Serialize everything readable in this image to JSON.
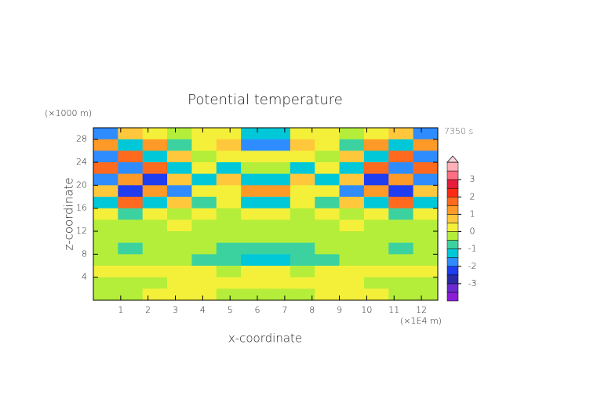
{
  "chart_data": {
    "type": "contourf",
    "title": "Potential temperature",
    "xlabel": "x-coordinate",
    "ylabel": "z-coordinate",
    "x_unit": "(×1E4 m)",
    "y_unit": "(×1000 m)",
    "time_label": "7350 s",
    "xlim": [
      0,
      12.6
    ],
    "ylim": [
      0,
      30
    ],
    "xticks": [
      1,
      2,
      3,
      4,
      5,
      6,
      7,
      8,
      9,
      10,
      11,
      12
    ],
    "yticks": [
      4,
      8,
      12,
      16,
      20,
      24,
      28
    ],
    "x": [
      0.45,
      1.35,
      2.25,
      3.15,
      4.05,
      4.95,
      5.85,
      6.75,
      7.65,
      8.55,
      9.45,
      10.35,
      11.25,
      12.15
    ],
    "y": [
      29,
      27,
      25,
      23,
      21,
      19,
      17,
      15,
      13,
      11,
      9,
      7,
      5,
      3,
      1
    ],
    "z": [
      [
        -1.7,
        0.7,
        0.2,
        -0.2,
        0.2,
        0.2,
        -1.2,
        -1.2,
        0.2,
        0.2,
        -0.2,
        0.2,
        0.7,
        -1.7
      ],
      [
        1.2,
        -1.2,
        1.2,
        -0.7,
        0.2,
        0.7,
        -1.7,
        -1.7,
        0.7,
        0.2,
        -0.7,
        1.2,
        -1.2,
        1.2
      ],
      [
        -1.7,
        1.7,
        -1.2,
        0.7,
        -0.2,
        0.2,
        0.2,
        0.2,
        0.2,
        -0.2,
        0.7,
        -1.2,
        1.7,
        -1.7
      ],
      [
        1.7,
        -1.7,
        1.7,
        -1.2,
        0.2,
        -1.2,
        -0.2,
        -0.2,
        -1.2,
        0.2,
        -1.2,
        1.7,
        -1.7,
        1.7
      ],
      [
        -1.7,
        1.2,
        -2.2,
        0.7,
        -1.2,
        0.7,
        -1.2,
        -1.2,
        0.7,
        -1.2,
        0.7,
        -2.2,
        1.2,
        -1.7
      ],
      [
        0.7,
        -2.2,
        1.2,
        -1.7,
        0.2,
        0.2,
        1.2,
        1.2,
        0.2,
        0.2,
        -1.7,
        1.2,
        -2.2,
        0.7
      ],
      [
        -1.2,
        1.7,
        -1.2,
        0.7,
        -0.7,
        0.2,
        -1.2,
        -1.2,
        0.2,
        -0.7,
        0.7,
        -1.2,
        1.7,
        -1.2
      ],
      [
        0.2,
        -0.7,
        0.2,
        -0.2,
        0.2,
        -0.2,
        0.2,
        0.2,
        -0.2,
        0.2,
        -0.2,
        0.2,
        -0.7,
        0.2
      ],
      [
        -0.2,
        -0.2,
        -0.2,
        0.2,
        -0.2,
        -0.2,
        -0.2,
        -0.2,
        -0.2,
        -0.2,
        0.2,
        -0.2,
        -0.2,
        -0.2
      ],
      [
        -0.2,
        -0.2,
        -0.2,
        -0.2,
        -0.2,
        -0.2,
        -0.2,
        -0.2,
        -0.2,
        -0.2,
        -0.2,
        -0.2,
        -0.2,
        -0.2
      ],
      [
        -0.2,
        -0.7,
        -0.2,
        -0.2,
        -0.2,
        -0.7,
        -0.7,
        -0.7,
        -0.7,
        -0.2,
        -0.2,
        -0.2,
        -0.7,
        -0.2
      ],
      [
        -0.2,
        -0.2,
        -0.2,
        -0.2,
        -0.7,
        -0.7,
        -1.2,
        -1.2,
        -0.7,
        -0.7,
        -0.2,
        -0.2,
        -0.2,
        -0.2
      ],
      [
        0.2,
        0.2,
        0.2,
        0.2,
        0.2,
        -0.2,
        0.2,
        0.2,
        -0.2,
        0.2,
        0.2,
        0.2,
        0.2,
        0.2
      ],
      [
        -0.2,
        -0.2,
        -0.2,
        0.2,
        0.2,
        0.2,
        0.2,
        0.2,
        0.2,
        0.2,
        0.2,
        -0.2,
        -0.2,
        -0.2
      ],
      [
        -0.2,
        -0.2,
        0.2,
        0.2,
        0.2,
        -0.2,
        -0.2,
        -0.2,
        -0.2,
        0.2,
        0.2,
        0.2,
        -0.2,
        -0.2
      ]
    ],
    "levels": [
      -4,
      -3.5,
      -3,
      -2.5,
      -2,
      -1.5,
      -1,
      -0.5,
      0,
      0.5,
      1,
      1.5,
      2,
      2.5,
      3,
      3.5,
      4
    ],
    "colors": [
      "#8a1ed8",
      "#6a2ad0",
      "#2a2aa8",
      "#1e3cf0",
      "#2f8cff",
      "#00c8d8",
      "#3cd2a0",
      "#b4ee3a",
      "#f4f03a",
      "#ffc83c",
      "#ff9a28",
      "#ff6a1e",
      "#ff2a14",
      "#e61e3c",
      "#ff6e82",
      "#ffb0b8"
    ],
    "over_color": "#ffd8dc",
    "cbar_ticks": [
      3,
      2,
      1,
      0,
      -1,
      -2,
      -3
    ]
  }
}
